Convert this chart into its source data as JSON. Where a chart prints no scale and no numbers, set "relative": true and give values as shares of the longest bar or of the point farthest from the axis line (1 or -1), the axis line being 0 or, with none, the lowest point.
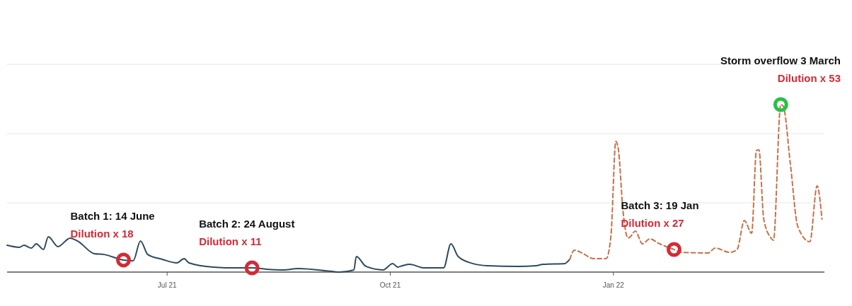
{
  "chart_data": {
    "type": "line",
    "relative": true,
    "ref_lines": [
      {
        "axis": "y",
        "value": 0.4135,
        "color": "#e6e6e6"
      },
      {
        "axis": "y",
        "value": 0.827,
        "color": "#e6e6e6"
      },
      {
        "axis": "y",
        "value": 1.24,
        "color": "#e6e6e6"
      }
    ],
    "xlim": [
      "2021-04-26",
      "2022-03-29"
    ],
    "xticks": [
      {
        "value": "2021-07-01",
        "label": "Jul 21"
      },
      {
        "value": "2021-10-01",
        "label": "Oct 21"
      },
      {
        "value": "2022-01-01",
        "label": "Jan 22"
      }
    ],
    "series": [
      {
        "color": "#2e4a5e",
        "line_style": "solid",
        "x": [
          "2021-04-26",
          "2021-05-01",
          "2021-05-03",
          "2021-05-06",
          "2021-05-08",
          "2021-05-11",
          "2021-05-13",
          "2021-05-17",
          "2021-05-22",
          "2021-05-25",
          "2021-06-01",
          "2021-06-05",
          "2021-06-13",
          "2021-06-17",
          "2021-06-20",
          "2021-06-23",
          "2021-06-29",
          "2021-07-05",
          "2021-07-08",
          "2021-07-10",
          "2021-07-20",
          "2021-07-30",
          "2021-08-05",
          "2021-08-11",
          "2021-08-18",
          "2021-08-24",
          "2021-09-07",
          "2021-09-10",
          "2021-09-16",
          "2021-09-17",
          "2021-09-21",
          "2021-09-28",
          "2021-10-02",
          "2021-10-04",
          "2021-10-06",
          "2021-10-09",
          "2021-10-15",
          "2021-10-23",
          "2021-10-26",
          "2021-10-29",
          "2021-11-04",
          "2021-11-10",
          "2021-11-23",
          "2021-11-30",
          "2021-12-03",
          "2021-12-12",
          "2021-12-14"
        ],
        "values": [
          0.16,
          0.148,
          0.16,
          0.143,
          0.169,
          0.135,
          0.211,
          0.152,
          0.203,
          0.186,
          0.11,
          0.105,
          0.072,
          0.068,
          0.186,
          0.105,
          0.076,
          0.055,
          0.08,
          0.055,
          0.03,
          0.025,
          0.025,
          0.017,
          0.013,
          0.021,
          0.004,
          0,
          0.013,
          0.093,
          0.034,
          0.013,
          0.051,
          0.03,
          0.038,
          0.046,
          0.025,
          0.025,
          0.169,
          0.093,
          0.051,
          0.038,
          0.034,
          0.038,
          0.046,
          0.051,
          0.076
        ]
      },
      {
        "color": "#c8704a",
        "line_style": "dashed",
        "x": [
          "2021-12-14",
          "2021-12-16",
          "2021-12-19",
          "2021-12-24",
          "2021-12-29",
          "2021-12-31",
          "2022-01-02",
          "2022-01-03",
          "2022-01-05",
          "2022-01-07",
          "2022-01-08",
          "2022-01-10",
          "2022-01-13",
          "2022-01-16",
          "2022-01-20",
          "2022-01-26",
          "2022-01-29",
          "2022-02-09",
          "2022-02-12",
          "2022-02-18",
          "2022-02-21",
          "2022-02-24",
          "2022-02-27",
          "2022-03-01",
          "2022-03-02",
          "2022-03-04",
          "2022-03-07",
          "2022-03-08",
          "2022-03-11",
          "2022-03-12",
          "2022-03-15",
          "2022-03-18",
          "2022-03-23",
          "2022-03-26",
          "2022-03-28"
        ],
        "values": [
          0.076,
          0.131,
          0.114,
          0.08,
          0.08,
          0.219,
          0.781,
          0.738,
          0.359,
          0.203,
          0.211,
          0.245,
          0.169,
          0.198,
          0.169,
          0.135,
          0.118,
          0.114,
          0.143,
          0.118,
          0.135,
          0.308,
          0.232,
          0.726,
          0.73,
          0.316,
          0.203,
          0.19,
          1,
          0.992,
          0.641,
          0.274,
          0.181,
          0.515,
          0.316
        ]
      },
      {
        "type": "scatter",
        "marker": "circle",
        "colors": [
          "#d42a35",
          "#d42a35",
          "#d42a35",
          "#22c443"
        ],
        "x": [
          "2021-06-13",
          "2021-08-05",
          "2022-01-26",
          "2022-03-11"
        ],
        "values": [
          0.072,
          0.025,
          0.135,
          1
        ]
      }
    ],
    "annotations": [
      {
        "text": "Batch 1: 14 June\nDilution x 18",
        "x": "2021-06-13",
        "y": 0.072
      },
      {
        "text": "Batch 2: 24 August\nDilution x 11",
        "x": "2021-08-05",
        "y": 0.025
      },
      {
        "text": "Batch 3: 19 Jan\nDilution x 27",
        "x": "2022-01-26",
        "y": 0.135
      },
      {
        "text": "Storm overflow 3 March\nDilution x 53",
        "x": "2022-03-11",
        "y": 1
      }
    ]
  }
}
